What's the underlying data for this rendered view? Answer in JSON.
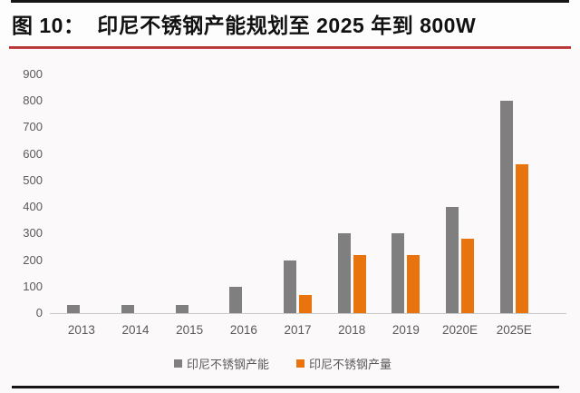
{
  "header": {
    "title": "图 10：  印尼不锈钢产能规划至 2025 年到 800W"
  },
  "colors": {
    "capacity": "#7f7f7f",
    "output": "#e9730d",
    "red_rule": "#bf3131",
    "black_rule": "#151515",
    "axis_text": "#595959",
    "baseline": "#c9c9c9",
    "panel_bg": "#fbf9fa"
  },
  "chart_data": {
    "type": "bar",
    "categories": [
      "2013",
      "2014",
      "2015",
      "2016",
      "2017",
      "2018",
      "2019",
      "2020E",
      "2025E"
    ],
    "series": [
      {
        "name": "印尼不锈钢产能",
        "color_key": "capacity",
        "values": [
          30,
          30,
          30,
          100,
          200,
          300,
          300,
          400,
          800
        ]
      },
      {
        "name": "印尼不锈钢产量",
        "color_key": "output",
        "values": [
          0,
          0,
          0,
          0,
          70,
          220,
          220,
          280,
          560
        ]
      }
    ],
    "title": "印尼不锈钢产能规划至 2025 年到 800W",
    "xlabel": "",
    "ylabel": "",
    "ylim": [
      0,
      900
    ],
    "yticks": [
      0,
      100,
      200,
      300,
      400,
      500,
      600,
      700,
      800,
      900
    ],
    "grid": false,
    "legend_position": "bottom"
  }
}
